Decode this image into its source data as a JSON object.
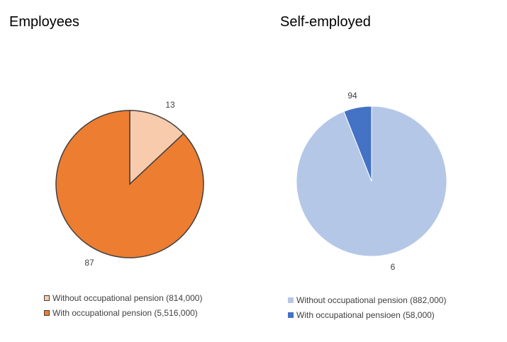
{
  "chart_data": [
    {
      "type": "pie",
      "title": "Employees",
      "categories": [
        "Without occupational pension (814,000)",
        "With occupational pension (5,516,000)"
      ],
      "values": [
        13,
        87
      ],
      "colors": [
        "#F8CBAD",
        "#ED7D31"
      ],
      "outline": true,
      "data_labels": [
        "13",
        "87"
      ],
      "legend": "bottom"
    },
    {
      "type": "pie",
      "title": "Self-employed",
      "categories": [
        "Without occupational pension (882,000)",
        "With occupational pensioen (58,000)"
      ],
      "values": [
        94,
        6
      ],
      "colors": [
        "#B4C7E7",
        "#4472C4"
      ],
      "outline": false,
      "data_labels": [
        "94",
        "6"
      ],
      "legend": "bottom"
    }
  ]
}
